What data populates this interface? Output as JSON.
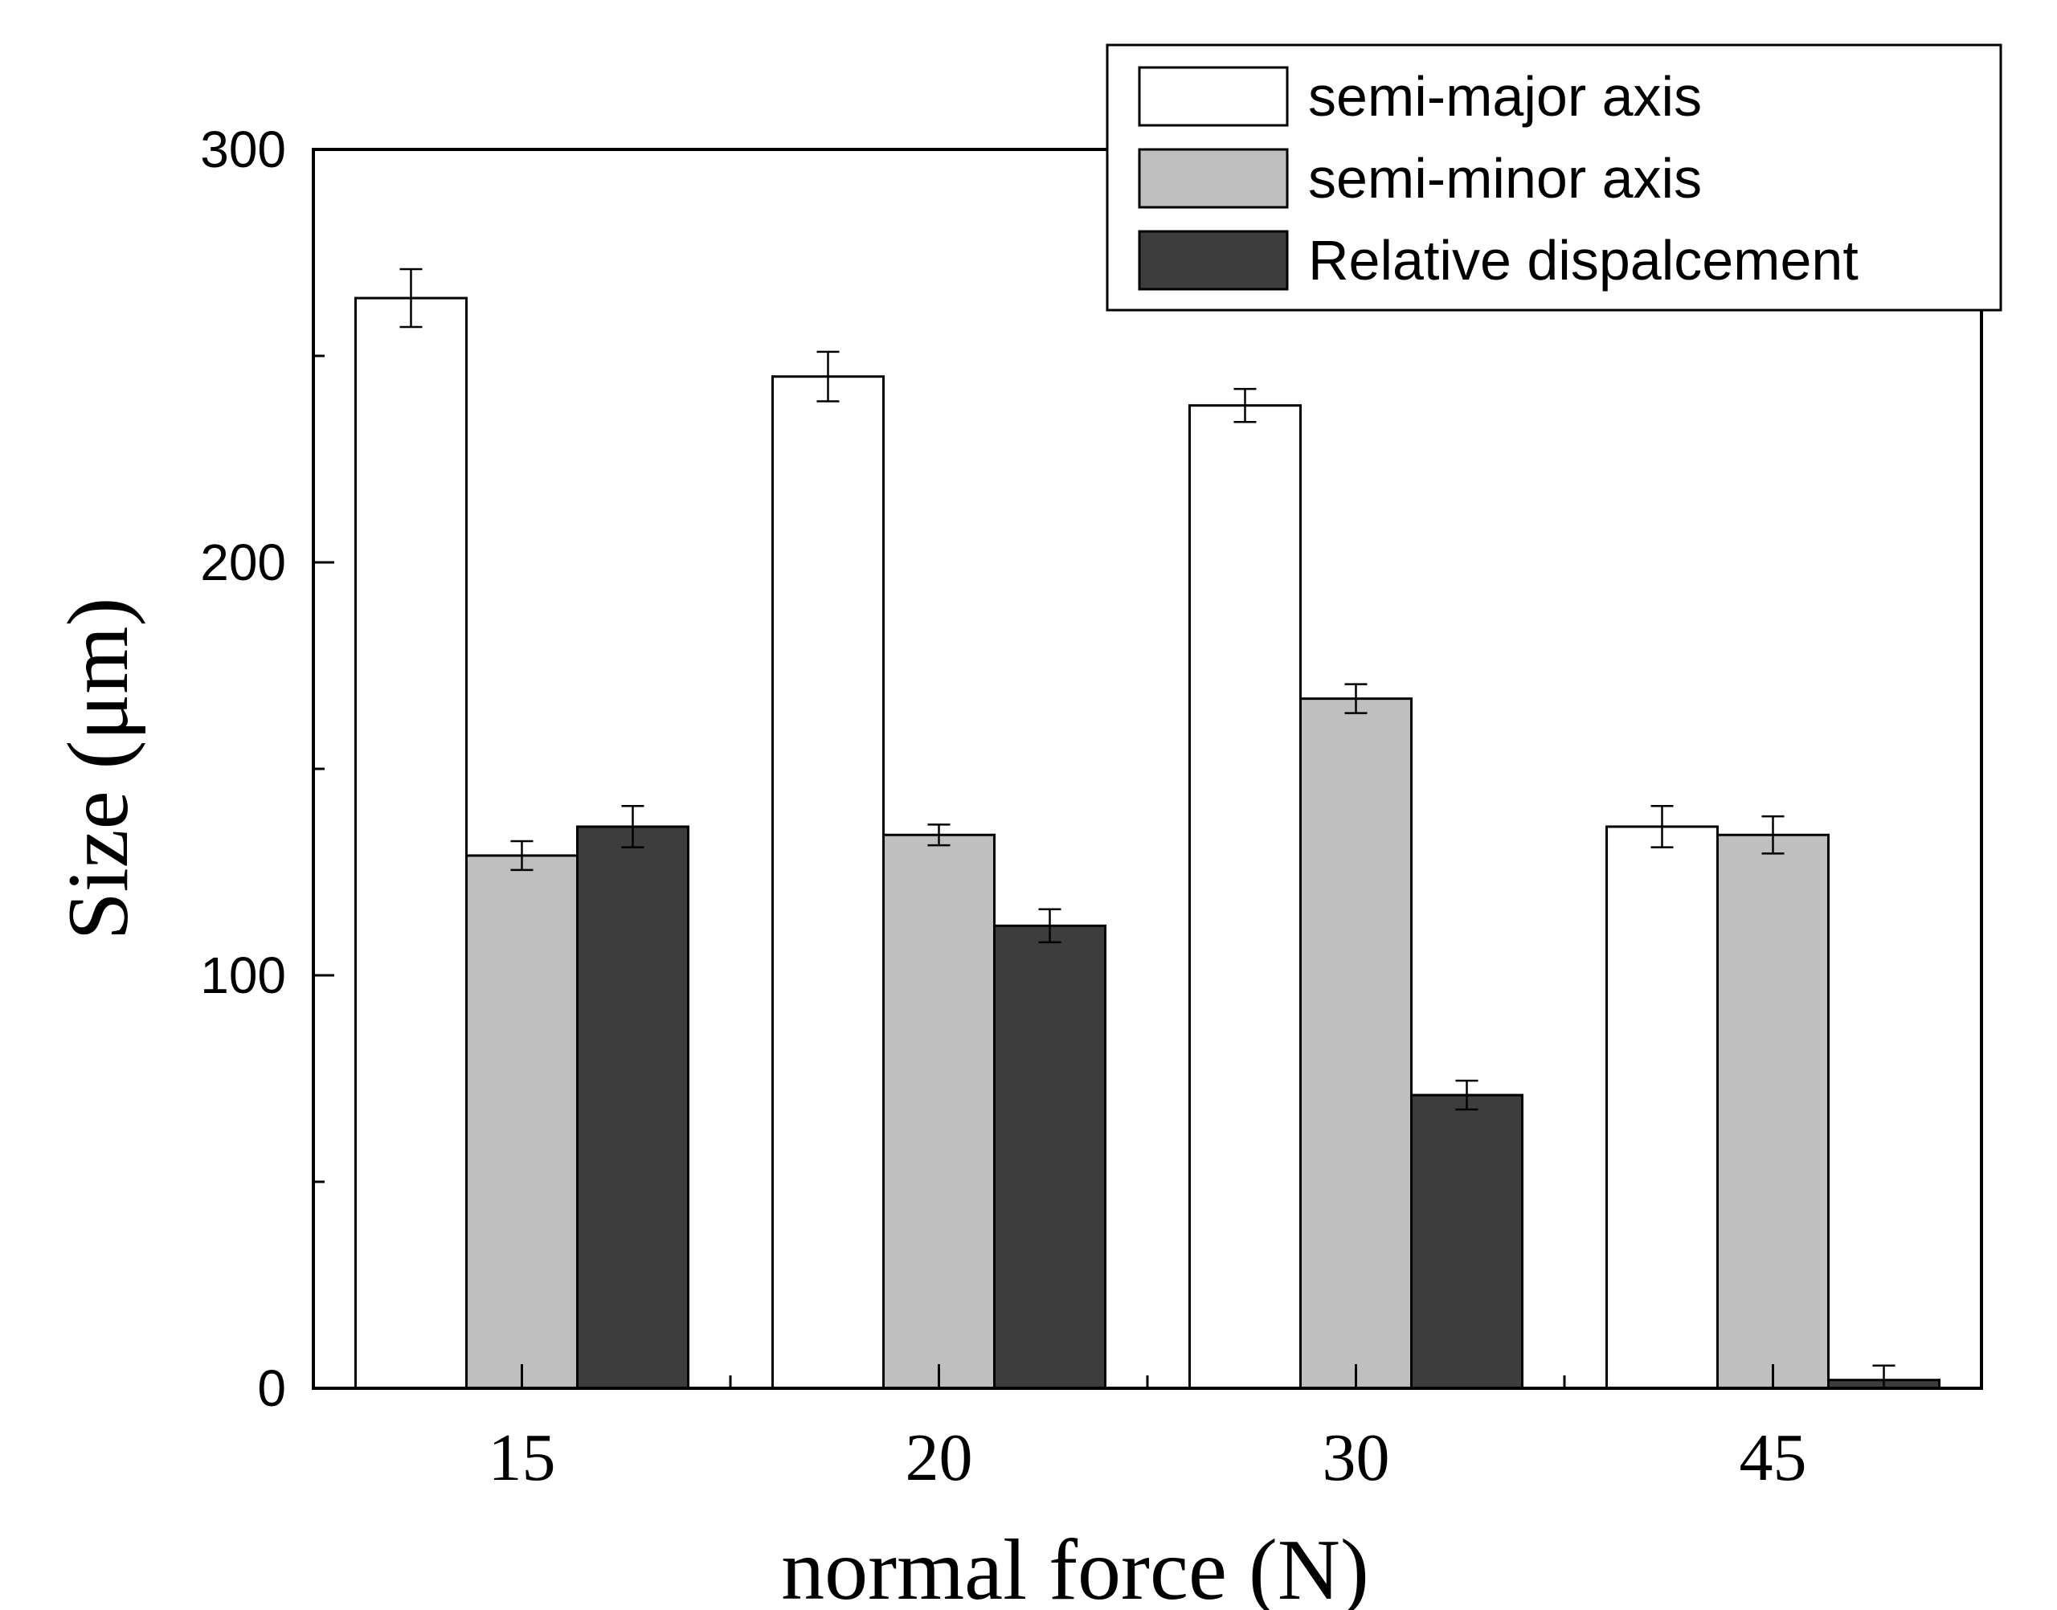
{
  "chart_data": {
    "type": "bar",
    "title": "",
    "xlabel": "normal force (N)",
    "ylabel": "Size (μm)",
    "categories": [
      "15",
      "20",
      "30",
      "45"
    ],
    "ylim": [
      0,
      300
    ],
    "yticks": [
      0,
      100,
      200,
      300
    ],
    "y_minor_ticks": [
      50,
      150,
      250
    ],
    "grid": false,
    "legend_position": "top-right",
    "series": [
      {
        "name": "semi-major axis",
        "color": "#ffffff",
        "values": [
          264,
          245,
          238,
          136
        ],
        "errors": [
          7,
          6,
          4,
          5
        ]
      },
      {
        "name": "semi-minor axis",
        "color": "#bfbfbf",
        "values": [
          129,
          134,
          167,
          134
        ],
        "errors": [
          3.5,
          2.5,
          3.5,
          4.5
        ]
      },
      {
        "name": "Relative dispalcement",
        "color": "#3d3d3d",
        "values": [
          136,
          112,
          71,
          2
        ],
        "errors": [
          5,
          4,
          3.5,
          3.5
        ]
      }
    ]
  }
}
